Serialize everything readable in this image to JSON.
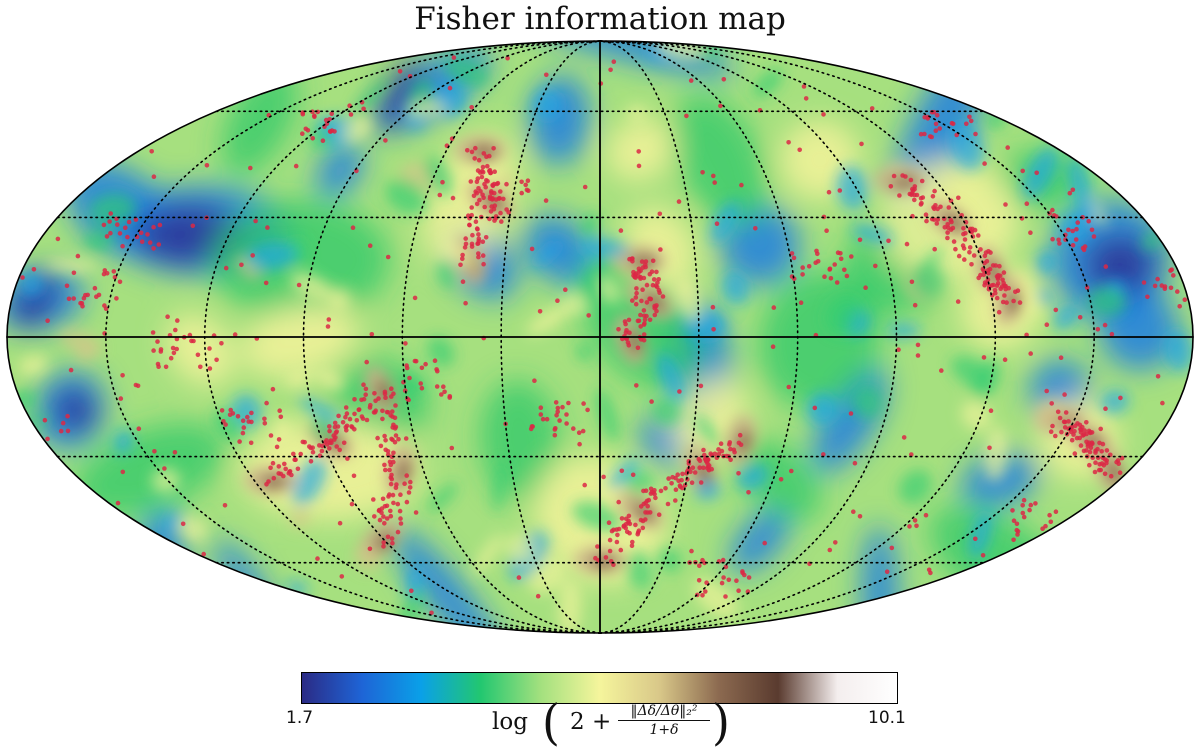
{
  "title": "Fisher information map",
  "colorbar": {
    "min_label": "1.7",
    "max_label": "10.1",
    "label_log": "log",
    "label_const": "2 +",
    "label_numerator": "‖Δδ/Δθ‖₂²",
    "label_denominator": "1+δ",
    "colormap": [
      "#2b2b85",
      "#1e64d6",
      "#0aa0e8",
      "#22c770",
      "#a2e07e",
      "#f5f59c",
      "#d9c889",
      "#8c6a50",
      "#5a3b2f",
      "#f4eeee",
      "#ffffff"
    ]
  },
  "chart_data": {
    "type": "heatmap",
    "projection": "mollweide",
    "title": "Fisher information map",
    "value_range": [
      1.7,
      10.1
    ],
    "graticule": {
      "meridians_step_deg": 30,
      "parallels_step_deg": 30,
      "style": "dotted",
      "central_axes": "solid"
    },
    "overlay": {
      "type": "scatter",
      "color": "#dc2845",
      "description": "red points tracing high-information filaments"
    }
  }
}
